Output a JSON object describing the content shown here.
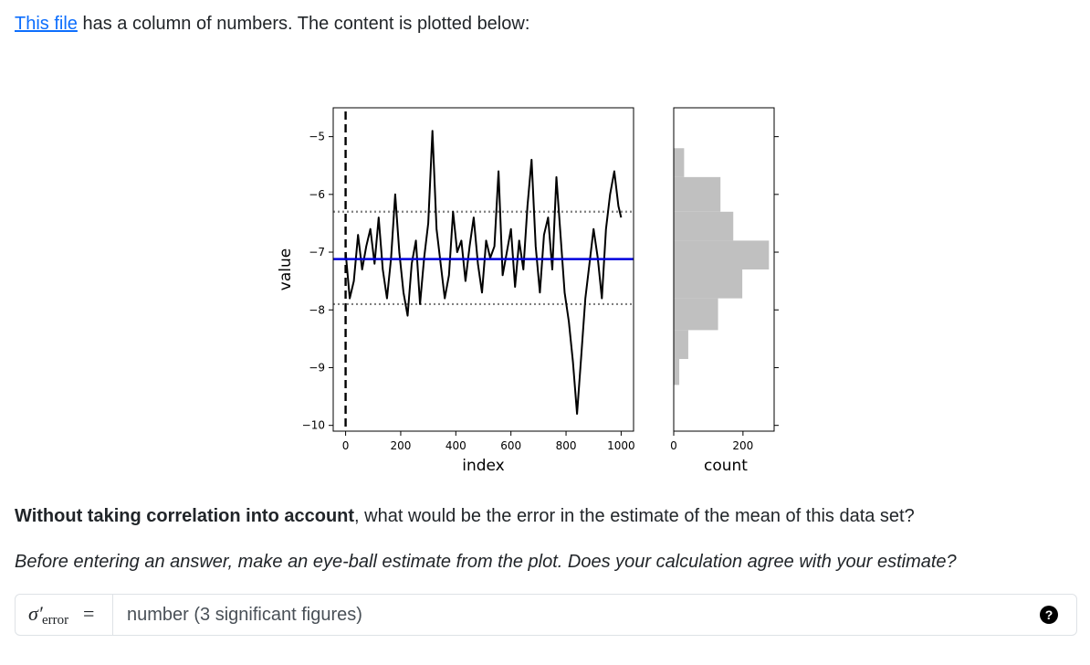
{
  "intro": {
    "link_text": "This file",
    "rest_text": " has a column of numbers. The content is plotted below:"
  },
  "question": {
    "bold": "Without taking correlation into account",
    "rest": ", what would be the error in the estimate of the mean of this data set?",
    "hint": "Before entering an answer, make an eye-ball estimate from the plot. Does your calculation agree with your estimate?"
  },
  "answer": {
    "symbol": "σ′",
    "subscript": "error",
    "equals": "=",
    "placeholder": "number (3 significant figures)",
    "help_icon_text": "?"
  },
  "colors": {
    "link": "#0d6efd",
    "mean_line": "#0000dd",
    "trace": "#000000",
    "histogram": "#c0c0c0",
    "sigma_line": "#808080"
  },
  "chart_data": [
    {
      "type": "line",
      "xlabel": "index",
      "ylabel": "value",
      "xlim": [
        -45,
        1045
      ],
      "ylim": [
        -10.1,
        -4.5
      ],
      "xticks": [
        0,
        200,
        400,
        600,
        800,
        1000
      ],
      "ytick_values": [
        -5,
        -6,
        -7,
        -8,
        -9,
        -10
      ],
      "ytick_labels": [
        "−5",
        "−6",
        "−7",
        "−8",
        "−9",
        "−10"
      ],
      "mean": -7.12,
      "sigma_band": [
        -6.3,
        -7.9
      ],
      "vertical_marker_x": 0,
      "series": [
        {
          "x": [
            0,
            15,
            30,
            45,
            60,
            75,
            90,
            105,
            120,
            135,
            150,
            165,
            180,
            195,
            210,
            225,
            240,
            255,
            270,
            285,
            300,
            315,
            330,
            345,
            360,
            375,
            390,
            405,
            420,
            435,
            450,
            465,
            480,
            495,
            510,
            525,
            540,
            555,
            570,
            585,
            600,
            615,
            630,
            645,
            660,
            675,
            690,
            705,
            720,
            735,
            750,
            765,
            780,
            795,
            810,
            825,
            840,
            855,
            870,
            885,
            900,
            915,
            930,
            945,
            960,
            975,
            990,
            1000
          ],
          "values": [
            -7.0,
            -7.8,
            -7.5,
            -6.7,
            -7.3,
            -6.9,
            -6.6,
            -7.2,
            -6.4,
            -7.3,
            -7.8,
            -7.1,
            -6.0,
            -7.0,
            -7.7,
            -8.1,
            -7.2,
            -6.8,
            -7.9,
            -7.1,
            -6.5,
            -4.9,
            -6.6,
            -7.2,
            -7.8,
            -7.4,
            -6.3,
            -7.0,
            -6.8,
            -7.5,
            -6.9,
            -6.4,
            -7.2,
            -7.7,
            -6.8,
            -7.1,
            -6.9,
            -5.6,
            -7.4,
            -7.0,
            -6.6,
            -7.6,
            -6.8,
            -7.3,
            -6.2,
            -5.4,
            -6.9,
            -7.7,
            -6.7,
            -6.4,
            -7.3,
            -5.7,
            -6.7,
            -7.7,
            -8.2,
            -8.9,
            -9.8,
            -8.8,
            -7.8,
            -7.2,
            -6.6,
            -7.1,
            -7.8,
            -6.6,
            -6.0,
            -5.6,
            -6.2,
            -6.4
          ]
        }
      ]
    },
    {
      "type": "bar",
      "orientation": "horizontal",
      "xlabel": "count",
      "ylabel": "",
      "xlim": [
        0,
        290
      ],
      "ylim": [
        -10.1,
        -4.5
      ],
      "xticks": [
        0,
        200
      ],
      "bins": [
        {
          "lo": -5.7,
          "hi": -5.2,
          "count": 30
        },
        {
          "lo": -6.3,
          "hi": -5.7,
          "count": 135
        },
        {
          "lo": -6.8,
          "hi": -6.3,
          "count": 172
        },
        {
          "lo": -7.3,
          "hi": -6.8,
          "count": 275
        },
        {
          "lo": -7.8,
          "hi": -7.3,
          "count": 198
        },
        {
          "lo": -8.35,
          "hi": -7.8,
          "count": 128
        },
        {
          "lo": -8.85,
          "hi": -8.35,
          "count": 42
        },
        {
          "lo": -9.3,
          "hi": -8.85,
          "count": 16
        }
      ]
    }
  ]
}
